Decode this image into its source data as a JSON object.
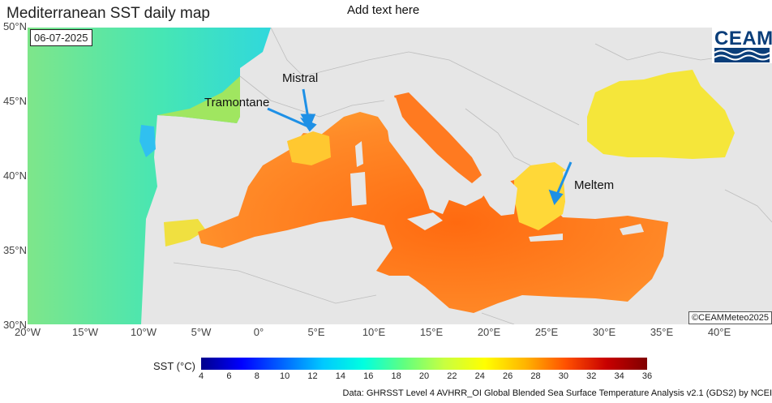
{
  "title": "Mediterranean SST daily map",
  "subtitle": "Add text here",
  "date": "06-07-2025",
  "logo": {
    "text": "CEAM"
  },
  "credit": "©CEAMMeteo2025",
  "source": "Data: GHRSST Level 4 AVHRR_OI Global Blended Sea Surface Temperature Analysis v2.1 (GDS2) by NCEI",
  "annotations": [
    {
      "id": "mistral",
      "text": "Mistral"
    },
    {
      "id": "tramontane",
      "text": "Tramontane"
    },
    {
      "id": "meltem",
      "text": "Meltem"
    }
  ],
  "lat_labels": [
    "50°N",
    "45°N",
    "40°N",
    "35°N",
    "30°N"
  ],
  "lon_labels": [
    "20°W",
    "15°W",
    "10°W",
    "5°W",
    "0°",
    "5°E",
    "10°E",
    "15°E",
    "20°E",
    "25°E",
    "30°E",
    "35°E",
    "40°E"
  ],
  "colorbar": {
    "title": "SST (°C)",
    "min": 4,
    "max": 36,
    "ticks": [
      "4",
      "6",
      "8",
      "10",
      "12",
      "14",
      "16",
      "18",
      "20",
      "22",
      "24",
      "26",
      "28",
      "30",
      "32",
      "34",
      "36"
    ],
    "colors": [
      "#00008b",
      "#0000ff",
      "#0064ff",
      "#00c8ff",
      "#00ffe0",
      "#60ff80",
      "#c8ff40",
      "#ffff00",
      "#ffb400",
      "#ff5000",
      "#c80000",
      "#800000"
    ]
  },
  "colors": {
    "land": "#e6e6e6",
    "atlantic": "#60e6a0",
    "mediterranean": "#ff7a20",
    "black_sea": "#f5e63a",
    "arrow": "#1e90e6"
  }
}
